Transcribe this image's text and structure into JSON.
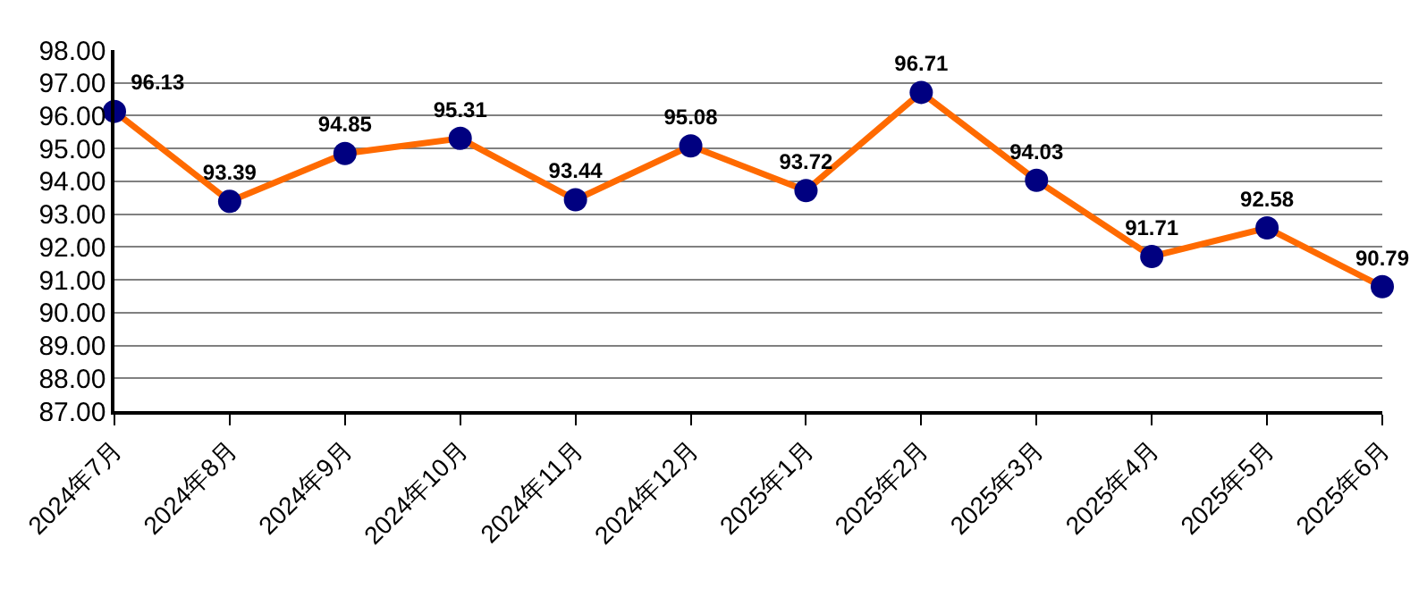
{
  "chart_data": {
    "type": "line",
    "categories": [
      "2024年7月",
      "2024年8月",
      "2024年9月",
      "2024年10月",
      "2024年11月",
      "2024年12月",
      "2025年1月",
      "2025年2月",
      "2025年3月",
      "2025年4月",
      "2025年5月",
      "2025年6月"
    ],
    "series": [
      {
        "color": "#ff6a00",
        "colors": [
          "#000080",
          "#000080",
          "#000080",
          "#000080",
          "#000080",
          "#000080",
          "#000080",
          "#000080",
          "#000080",
          "#000080",
          "#000080",
          "#000080"
        ],
        "values": [
          96.13,
          93.39,
          94.85,
          95.31,
          93.44,
          95.08,
          93.72,
          96.71,
          94.03,
          91.71,
          92.58,
          90.79
        ]
      }
    ],
    "ylim": [
      87,
      98
    ],
    "yticks": [
      {
        "value": 87,
        "label": "87.00"
      },
      {
        "value": 88,
        "label": "88.00"
      },
      {
        "value": 89,
        "label": "89.00"
      },
      {
        "value": 90,
        "label": "90.00"
      },
      {
        "value": 91,
        "label": "91.00"
      },
      {
        "value": 92,
        "label": "92.00"
      },
      {
        "value": 93,
        "label": "93.00"
      },
      {
        "value": 94,
        "label": "94.00"
      },
      {
        "value": 95,
        "label": "95.00"
      },
      {
        "value": 96,
        "label": "96.00"
      },
      {
        "value": 97,
        "label": "97.00"
      },
      {
        "value": 98,
        "label": "98.00"
      }
    ],
    "grid": "y",
    "marker": "circle",
    "line_style": "solid",
    "data_labels": true
  }
}
